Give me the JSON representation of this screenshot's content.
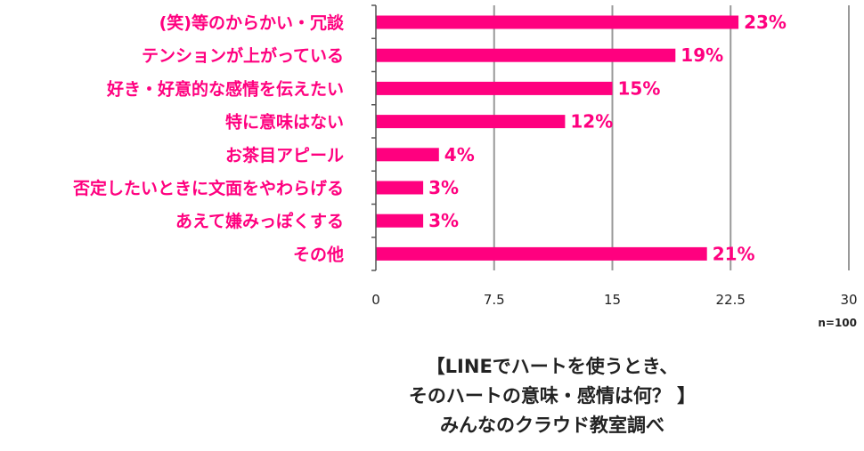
{
  "chart_data": {
    "type": "bar",
    "orientation": "horizontal",
    "categories": [
      "(笑)等のからかい・冗談",
      "テンションが上がっている",
      "好き・好意的な感情を伝えたい",
      "特に意味はない",
      "お茶目アピール",
      "否定したいときに文面をやわらげる",
      "あえて嫌みっぽくする",
      "その他"
    ],
    "values": [
      23,
      19,
      15,
      12,
      4,
      3,
      3,
      21
    ],
    "value_labels": [
      "23%",
      "19%",
      "15%",
      "12%",
      "4%",
      "3%",
      "3%",
      "21%"
    ],
    "xlim": [
      0,
      30
    ],
    "xticks": [
      "0",
      "7.5",
      "15",
      "22.5",
      "30"
    ],
    "grid": true,
    "legend": false,
    "colors": {
      "bar": "#ff007f",
      "text": "#ff007f",
      "grid": "#999999",
      "axis": "#555555"
    }
  },
  "sample_note": "n=100",
  "caption": {
    "line1": "【LINEでハートを使うとき、",
    "line2": "そのハートの意味・感情は何？ 】",
    "line3": "みんなのクラウド教室調べ"
  }
}
